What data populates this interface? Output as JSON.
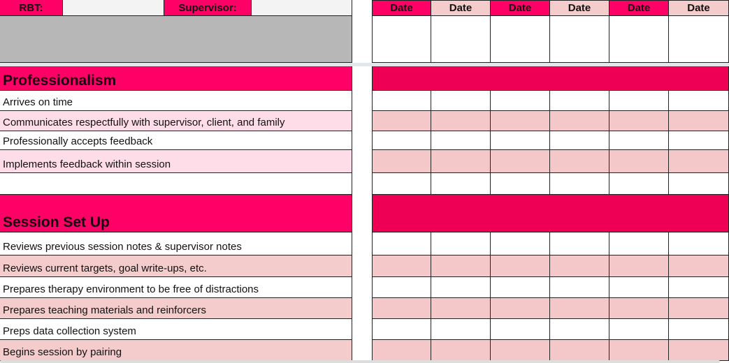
{
  "header": {
    "rbt_label": "RBT:",
    "supervisor_label": "Supervisor:",
    "date_labels": [
      "Date",
      "Date",
      "Date",
      "Date",
      "Date",
      "Date"
    ]
  },
  "sections": [
    {
      "title": "Professionalism",
      "rows": [
        "Arrives on time",
        "Communicates respectfully with supervisor, client, and family",
        "Professionally accepts feedback",
        "Implements feedback within session"
      ]
    },
    {
      "title": "Session Set Up",
      "rows": [
        "Reviews previous session notes & supervisor notes",
        "Reviews current targets, goal write-ups, etc.",
        "Prepares therapy environment to be free of distractions",
        "Prepares teaching materials and reinforcers",
        "Preps data collection system",
        "Begins session by pairing"
      ]
    }
  ]
}
